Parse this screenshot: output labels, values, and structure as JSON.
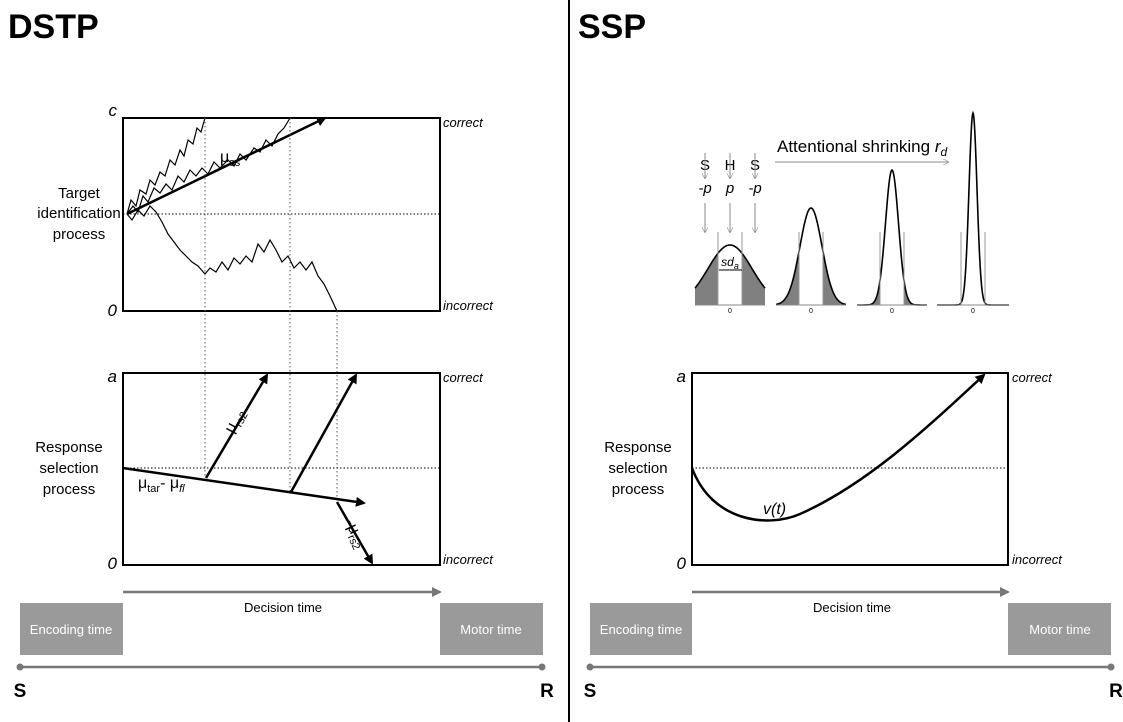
{
  "dstp": {
    "title": "DSTP",
    "target_panel": {
      "top_label": "c",
      "bottom_label": "0",
      "upper_boundary": "correct",
      "lower_boundary": "incorrect",
      "process": [
        "Target",
        "identification",
        "process"
      ],
      "drift": {
        "base": "μ",
        "sub": "ss"
      }
    },
    "response_panel": {
      "top_label": "a",
      "bottom_label": "0",
      "upper_boundary": "correct",
      "lower_boundary": "incorrect",
      "process": [
        "Response",
        "selection",
        "process"
      ],
      "drift_up": {
        "base": "μ",
        "sub": "rs2"
      },
      "drift_flanker": [
        {
          "base": "μ",
          "sub": "tar"
        },
        {
          "base": "- μ",
          "sub": "fl"
        }
      ],
      "drift_down": {
        "base": "-μ",
        "sub": "rs2"
      }
    },
    "decision_time": "Decision time",
    "encoding_time": "Encoding time",
    "motor_time": "Motor time",
    "start": "S",
    "end": "R"
  },
  "ssp": {
    "title": "SSP",
    "spotlight": {
      "positions": [
        "S",
        "H",
        "S"
      ],
      "weights": [
        "-p",
        "p",
        "-p"
      ],
      "shrinking": {
        "text": "Attentional shrinking ",
        "var": "r",
        "sub": "d"
      },
      "sd": {
        "base": "sd",
        "sub": "a"
      },
      "zero_labels": [
        "0",
        "0",
        "0",
        "0"
      ]
    },
    "response_panel": {
      "top_label": "a",
      "bottom_label": "0",
      "upper_boundary": "correct",
      "lower_boundary": "incorrect",
      "process": [
        "Response",
        "selection",
        "process"
      ],
      "drift": "v(t)"
    },
    "decision_time": "Decision time",
    "encoding_time": "Encoding time",
    "motor_time": "Motor time",
    "start": "S",
    "end": "R"
  }
}
